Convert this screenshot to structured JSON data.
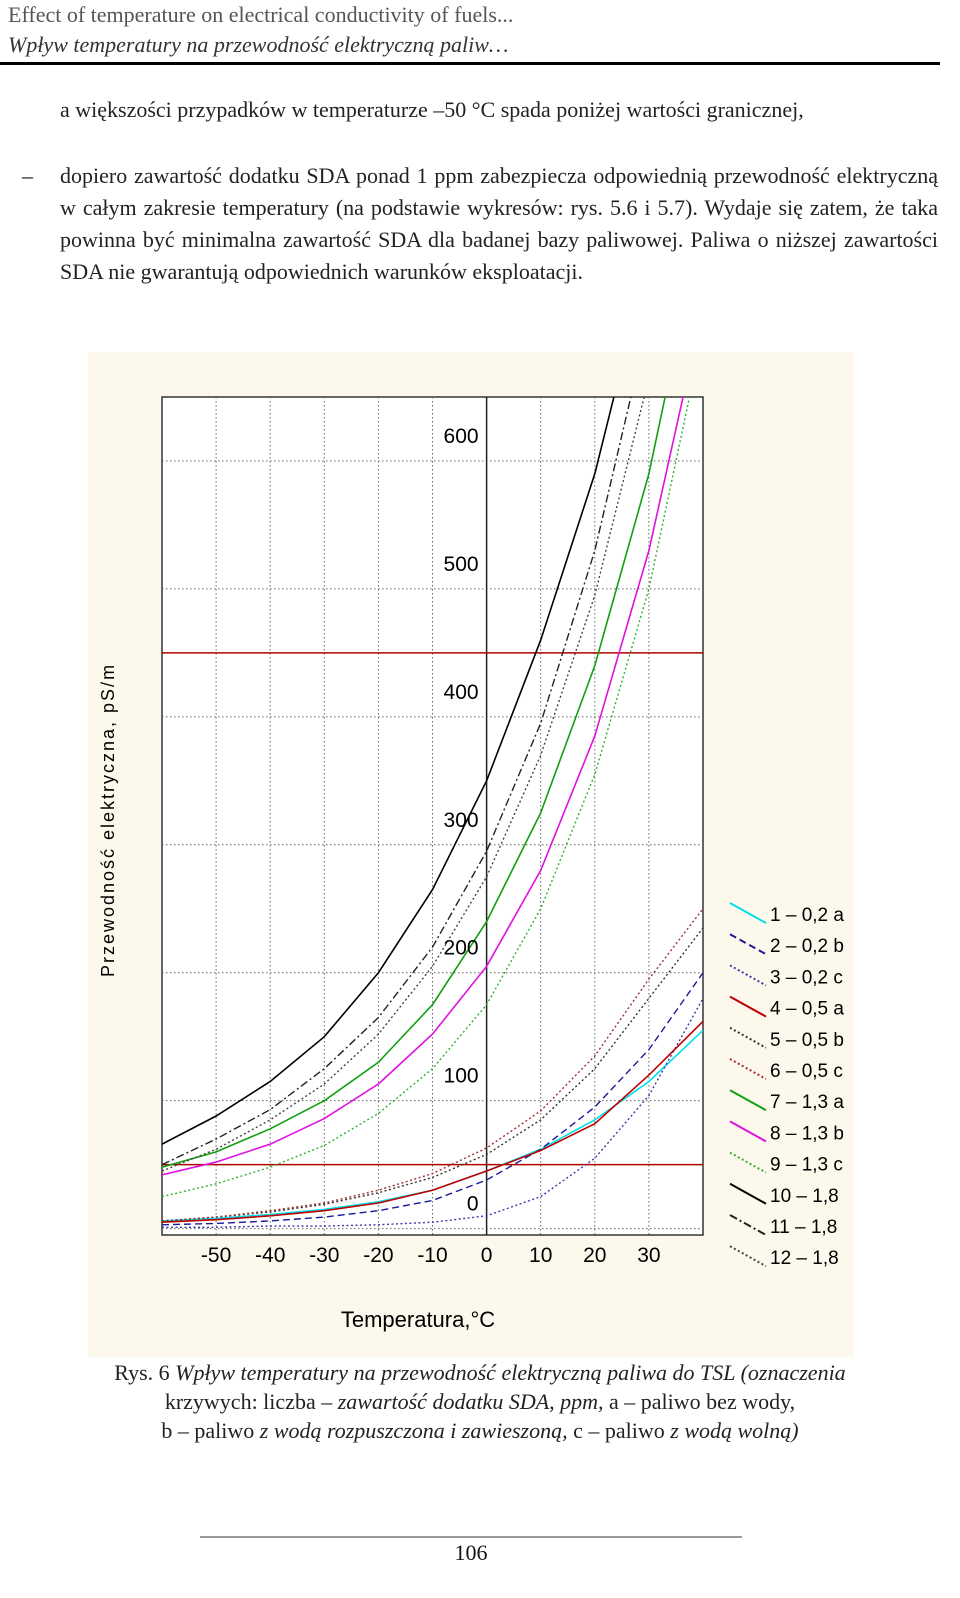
{
  "header": {
    "title": "Effect of temperature on electrical conductivity of fuels...",
    "subtitle": "Wpływ temperatury na przewodność elektryczną paliw…"
  },
  "body": [
    "a większości przypadków w temperaturze –50 °C spada poniżej wartości granicznej,",
    "dopiero zawartość dodatku SDA ponad  1 ppm zabezpiecza odpowiednią przewodność elektryczną w całym zakresie temperatury (na podstawie wykresów: rys. 5.6 i 5.7). Wydaje się zatem, że taka powinna być minimalna zawartość SDA dla badanej bazy paliwowej. Paliwa o niższej zawartości SDA nie gwarantują odpowiednich warunków eksploatacji."
  ],
  "chart_data": {
    "type": "line",
    "x_label": "Temperatura,°C",
    "y_label": "Przewodność elektryczna, pS/m",
    "x": [
      -60,
      -50,
      -40,
      -30,
      -20,
      -10,
      0,
      10,
      20,
      30,
      40
    ],
    "xlim": [
      -60,
      40
    ],
    "ylim": [
      -5,
      650
    ],
    "xticks": [
      -50,
      -40,
      -30,
      -20,
      -10,
      0,
      10,
      20,
      30
    ],
    "yticks": [
      0,
      100,
      200,
      300,
      400,
      500,
      600
    ],
    "grid": true,
    "hlines": [
      50,
      450
    ],
    "hline_color": "#b00000",
    "series": [
      {
        "name": "1 – 0,2 a",
        "color": "#00e0ee",
        "dash": "solid",
        "values": [
          6,
          8,
          11,
          15,
          21,
          30,
          45,
          62,
          85,
          115,
          155
        ]
      },
      {
        "name": "2 – 0,2 b",
        "color": "#1a1a9a",
        "dash": "dashed",
        "values": [
          3,
          4,
          6,
          9,
          14,
          22,
          38,
          62,
          95,
          140,
          200
        ]
      },
      {
        "name": "3 – 0,2 c",
        "color": "#3a3aaa",
        "dash": "dotted",
        "values": [
          1,
          1,
          2,
          2,
          3,
          5,
          10,
          25,
          55,
          104,
          180
        ]
      },
      {
        "name": "4 – 0,5 a",
        "color": "#c00000",
        "dash": "solid",
        "values": [
          5,
          7,
          10,
          14,
          20,
          30,
          45,
          61,
          82,
          120,
          162
        ]
      },
      {
        "name": "5 – 0,5 b",
        "color": "#333333",
        "dash": "dotted",
        "values": [
          6,
          9,
          13,
          19,
          28,
          40,
          58,
          85,
          125,
          180,
          235
        ]
      },
      {
        "name": "6 – 0,5 c",
        "color": "#a03030",
        "dash": "dotted",
        "values": [
          6,
          9,
          14,
          20,
          30,
          43,
          63,
          92,
          135,
          195,
          250
        ]
      },
      {
        "name": "7 – 1,3 a",
        "color": "#10a010",
        "dash": "solid",
        "values": [
          48,
          60,
          78,
          100,
          130,
          175,
          240,
          325,
          440,
          590,
          790
        ]
      },
      {
        "name": "8 – 1,3 b",
        "color": "#e010e0",
        "dash": "solid",
        "values": [
          42,
          52,
          66,
          86,
          113,
          152,
          205,
          280,
          385,
          530,
          720
        ]
      },
      {
        "name": "9 – 1,3 c",
        "color": "#30b030",
        "dash": "dotted",
        "values": [
          25,
          35,
          48,
          65,
          90,
          125,
          175,
          250,
          355,
          500,
          700
        ]
      },
      {
        "name": "10 – 1,8",
        "color": "#000000",
        "dash": "solid",
        "values": [
          66,
          88,
          115,
          150,
          200,
          265,
          350,
          460,
          590,
          760,
          null
        ]
      },
      {
        "name": "11 – 1,8",
        "color": "#222222",
        "dash": "dashdot",
        "values": [
          50,
          70,
          93,
          125,
          165,
          220,
          295,
          395,
          530,
          710,
          null
        ]
      },
      {
        "name": "12 – 1,8",
        "color": "#444444",
        "dash": "dotted",
        "values": [
          45,
          62,
          85,
          113,
          152,
          205,
          275,
          370,
          495,
          665,
          null
        ]
      }
    ]
  },
  "caption": [
    "Rys. 6 ",
    "Wpływ temperatury na przewodność elektryczną paliwa do TSL (oznaczenia",
    "krzywych: liczba – ",
    "zawartość dodatku SDA, ppm, ",
    "a – paliwo bez wody,",
    "b – paliwo ",
    "z wodą rozpuszczona i zawieszoną, ",
    "c – paliwo ",
    "z wodą wolną)"
  ],
  "page_number": "106"
}
